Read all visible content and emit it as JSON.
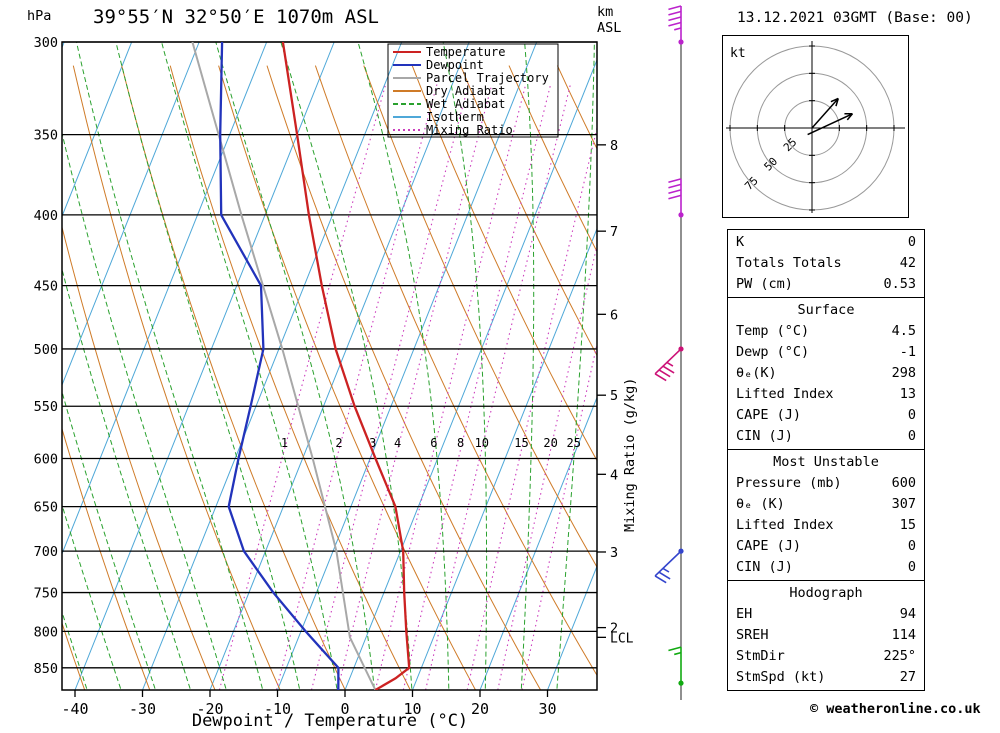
{
  "title": "39°55′N 32°50′E 1070m ASL",
  "datetime": "13.12.2021 03GMT (Base: 00)",
  "footer": "© weatheronline.co.uk",
  "colors": {
    "temperature": "#cc2222",
    "dewpoint": "#2233bb",
    "parcel": "#a8a8a8",
    "dry_adiabat": "#cf7b28",
    "wet_adiabat": "#2aa12e",
    "isotherm": "#4fa8d8",
    "mixing_ratio": "#cc3dbd",
    "grid": "#000000"
  },
  "axes": {
    "left_unit": "hPa",
    "right_unit_line1": "km",
    "right_unit_line2": "ASL",
    "pressure_ticks": [
      300,
      350,
      400,
      450,
      500,
      550,
      600,
      650,
      700,
      750,
      800,
      850
    ],
    "temp_ticks": [
      -40,
      -30,
      -20,
      -10,
      0,
      10,
      20,
      30
    ],
    "x_label": "Dewpoint / Temperature (°C)",
    "km_ticks": [
      {
        "km": 8,
        "p": 356
      },
      {
        "km": 7,
        "p": 411
      },
      {
        "km": 6,
        "p": 472
      },
      {
        "km": 5,
        "p": 540
      },
      {
        "km": 4,
        "p": 616
      },
      {
        "km": 3,
        "p": 701
      },
      {
        "km": 2,
        "p": 795
      }
    ],
    "lcl": {
      "label": "LCL",
      "p": 808
    },
    "mixing_ratio_axis_label": "Mixing Ratio (g/kg)",
    "mixing_ratio_lines": [
      1,
      2,
      3,
      4,
      6,
      8,
      10,
      15,
      20,
      25
    ]
  },
  "legend": [
    {
      "label": "Temperature",
      "color": "#cc2222",
      "style": "solid"
    },
    {
      "label": "Dewpoint",
      "color": "#2233bb",
      "style": "solid"
    },
    {
      "label": "Parcel Trajectory",
      "color": "#a8a8a8",
      "style": "solid"
    },
    {
      "label": "Dry Adiabat",
      "color": "#cf7b28",
      "style": "solid"
    },
    {
      "label": "Wet Adiabat",
      "color": "#2aa12e",
      "style": "dashed"
    },
    {
      "label": "Isotherm",
      "color": "#4fa8d8",
      "style": "solid"
    },
    {
      "label": "Mixing Ratio",
      "color": "#cc3dbd",
      "style": "dotted"
    }
  ],
  "chart_data": {
    "type": "line",
    "title": "Skew-T log-P sounding 39°55′N 32°50′E 1070m ASL",
    "x_axis": "Temperature (°C), skewed",
    "y_axis": "Pressure (hPa), log scale",
    "pressure_range": [
      300,
      882
    ],
    "temp_ticks": [
      -40,
      -30,
      -20,
      -10,
      0,
      10,
      20,
      30
    ],
    "series": [
      {
        "name": "Temperature",
        "units": "°C vs hPa",
        "points_p_T": [
          [
            882,
            4.5
          ],
          [
            865,
            6.8
          ],
          [
            850,
            8.2
          ],
          [
            800,
            5.6
          ],
          [
            750,
            3.0
          ],
          [
            700,
            0.4
          ],
          [
            650,
            -3.4
          ],
          [
            600,
            -9.2
          ],
          [
            550,
            -15.4
          ],
          [
            500,
            -21.6
          ],
          [
            450,
            -27.4
          ],
          [
            400,
            -33.5
          ],
          [
            350,
            -40.0
          ],
          [
            300,
            -47.6
          ]
        ]
      },
      {
        "name": "Dewpoint",
        "units": "°C vs hPa",
        "points_p_T": [
          [
            882,
            -1.0
          ],
          [
            850,
            -2.3
          ],
          [
            800,
            -9.3
          ],
          [
            750,
            -16.4
          ],
          [
            700,
            -23.2
          ],
          [
            650,
            -28.1
          ],
          [
            600,
            -29.5
          ],
          [
            550,
            -30.8
          ],
          [
            500,
            -32.3
          ],
          [
            450,
            -36.4
          ],
          [
            400,
            -46.5
          ],
          [
            350,
            -51.4
          ],
          [
            300,
            -56.6
          ]
        ]
      },
      {
        "name": "Parcel Trajectory",
        "units": "°C vs hPa",
        "points_p_T": [
          [
            882,
            4.5
          ],
          [
            808,
            -2.4
          ],
          [
            700,
            -9.5
          ],
          [
            600,
            -18.5
          ],
          [
            500,
            -29.5
          ],
          [
            400,
            -43.5
          ],
          [
            300,
            -61.0
          ]
        ]
      }
    ]
  },
  "wind_barbs": {
    "levels": [
      {
        "pressure": 300,
        "color": "#bb22cc",
        "dir": "up",
        "full": 4,
        "half": 1
      },
      {
        "pressure": 400,
        "color": "#bb22cc",
        "dir": "up",
        "full": 4,
        "half": 0
      },
      {
        "pressure": 500,
        "color": "#cc1177",
        "dir": "down-left",
        "full": 3,
        "half": 1
      },
      {
        "pressure": 700,
        "color": "#3344cc",
        "dir": "down-left",
        "full": 2,
        "half": 1
      },
      {
        "pressure": 872,
        "color": "#11aa11",
        "dir": "up",
        "full": 1,
        "half": 1
      }
    ]
  },
  "hodograph": {
    "unit": "kt",
    "rings": [
      25,
      50,
      75
    ],
    "arrows": [
      {
        "u1": 0,
        "v1": 0,
        "u2": 24,
        "v2": 27
      },
      {
        "u1": -4,
        "v1": -6,
        "u2": 37,
        "v2": 13
      }
    ]
  },
  "tables": [
    {
      "header": null,
      "rows": [
        [
          "K",
          "0"
        ],
        [
          "Totals Totals",
          "42"
        ],
        [
          "PW (cm)",
          "0.53"
        ]
      ]
    },
    {
      "header": "Surface",
      "rows": [
        [
          "Temp (°C)",
          "4.5"
        ],
        [
          "Dewp (°C)",
          "-1"
        ],
        [
          "θₑ(K)",
          "298"
        ],
        [
          "Lifted Index",
          "13"
        ],
        [
          "CAPE (J)",
          "0"
        ],
        [
          "CIN (J)",
          "0"
        ]
      ]
    },
    {
      "header": "Most Unstable",
      "rows": [
        [
          "Pressure (mb)",
          "600"
        ],
        [
          "θₑ (K)",
          "307"
        ],
        [
          "Lifted Index",
          "15"
        ],
        [
          "CAPE (J)",
          "0"
        ],
        [
          "CIN (J)",
          "0"
        ]
      ]
    },
    {
      "header": "Hodograph",
      "rows": [
        [
          "EH",
          "94"
        ],
        [
          "SREH",
          "114"
        ],
        [
          "StmDir",
          "225°"
        ],
        [
          "StmSpd (kt)",
          "27"
        ]
      ]
    }
  ]
}
